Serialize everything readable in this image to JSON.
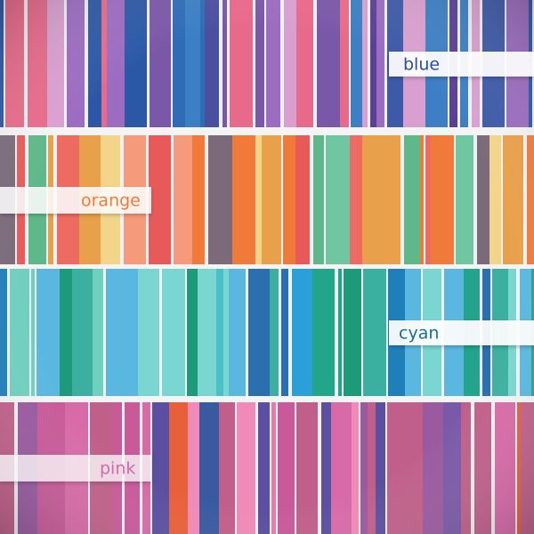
{
  "bands": [
    {
      "label": "blue"
    },
    {
      "label": "orange"
    },
    {
      "label": "cyan"
    },
    {
      "label": "pink"
    }
  ]
}
